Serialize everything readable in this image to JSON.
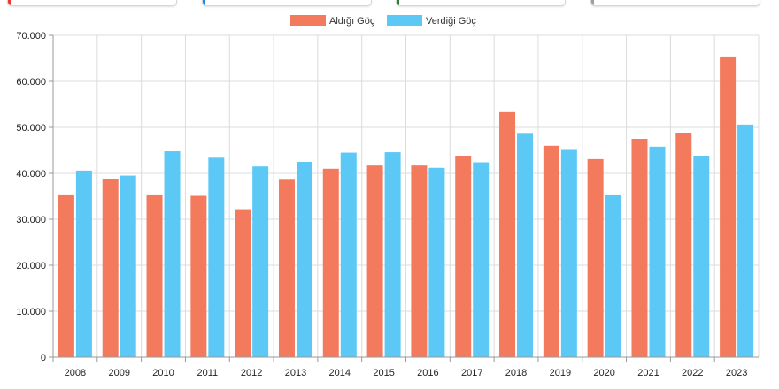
{
  "colors": {
    "series_received": "#f47a5e",
    "series_given": "#5bc8f5",
    "grid": "#dcdcdc",
    "axis": "#999999",
    "card_accents": [
      "#e53935",
      "#1e88e5",
      "#2e7d32",
      "#9e9e9e"
    ]
  },
  "legend": {
    "received_label": "Aldığı Göç",
    "given_label": "Verdiği Göç"
  },
  "chart_data": {
    "type": "bar",
    "title": "",
    "xlabel": "",
    "ylabel": "",
    "ylim": [
      0,
      70000
    ],
    "grid": true,
    "legend_position": "top-center",
    "yticks": [
      "0",
      "10.000",
      "20.000",
      "30.000",
      "40.000",
      "50.000",
      "60.000",
      "70.000"
    ],
    "categories": [
      "2008",
      "2009",
      "2010",
      "2011",
      "2012",
      "2013",
      "2014",
      "2015",
      "2016",
      "2017",
      "2018",
      "2019",
      "2020",
      "2021",
      "2022",
      "2023"
    ],
    "series": [
      {
        "name": "Aldığı Göç",
        "values": [
          35400,
          38800,
          35400,
          35100,
          32200,
          38600,
          41000,
          41700,
          41700,
          43700,
          53300,
          46000,
          43100,
          47500,
          48700,
          65400
        ]
      },
      {
        "name": "Verdiği Göç",
        "values": [
          40600,
          39500,
          44800,
          43400,
          41500,
          42500,
          44500,
          44600,
          41200,
          42400,
          48600,
          45100,
          35400,
          45800,
          43700,
          50600
        ]
      }
    ]
  }
}
